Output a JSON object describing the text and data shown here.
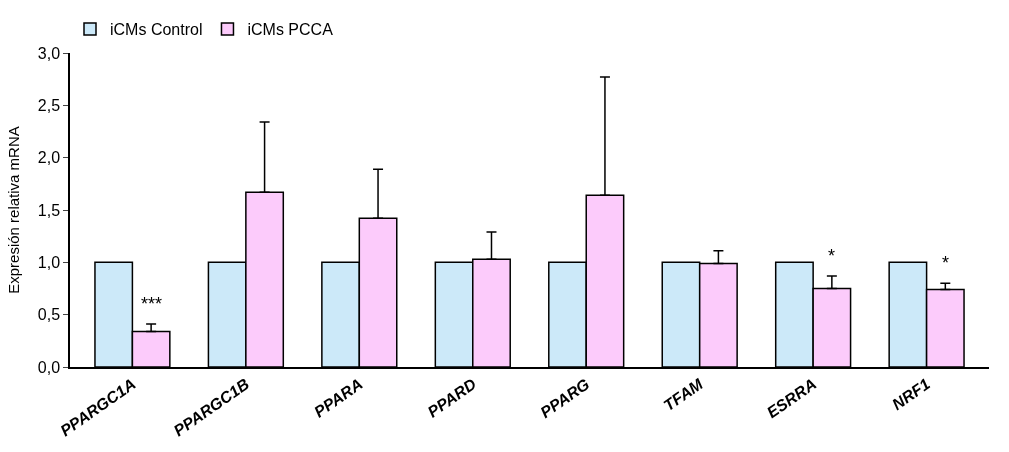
{
  "chart_data": {
    "type": "bar",
    "ylabel": "Expresión relativa mRNA",
    "categories": [
      "PPARGC1A",
      "PPARGC1B",
      "PPARA",
      "PPARD",
      "PPARG",
      "TFAM",
      "ESRRA",
      "NRF1"
    ],
    "series": [
      {
        "name": "iCMs Control",
        "color": "#cce9f9",
        "values": [
          1.0,
          1.0,
          1.0,
          1.0,
          1.0,
          1.0,
          1.0,
          1.0
        ]
      },
      {
        "name": "iCMs PCCA",
        "color": "#fccbfb",
        "values": [
          0.34,
          1.67,
          1.42,
          1.03,
          1.64,
          0.99,
          0.75,
          0.74
        ],
        "errors": [
          [
            0.34,
            0.41
          ],
          [
            1.67,
            2.34
          ],
          [
            1.42,
            1.89
          ],
          [
            1.03,
            1.29
          ],
          [
            1.64,
            2.77
          ],
          [
            0.99,
            1.11
          ],
          [
            0.75,
            0.87
          ],
          [
            0.74,
            0.8
          ]
        ]
      }
    ],
    "ylim": [
      0,
      3.0
    ],
    "yticks": [
      {
        "value": 0,
        "label": "0,0"
      },
      {
        "value": 0.5,
        "label": "0,5"
      },
      {
        "value": 1.0,
        "label": "1,0"
      },
      {
        "value": 1.5,
        "label": "1,5"
      },
      {
        "value": 2.0,
        "label": "2,0"
      },
      {
        "value": 2.5,
        "label": "2,5"
      },
      {
        "value": 3.0,
        "label": "3,0"
      }
    ],
    "annotations": [
      {
        "text": "***",
        "x": "PPARGC1A",
        "y": 0.41
      },
      {
        "text": "*",
        "x": "ESRRA",
        "y": 0.87
      },
      {
        "text": "*",
        "x": "NRF1",
        "y": 0.8
      }
    ],
    "legend": "top left"
  }
}
